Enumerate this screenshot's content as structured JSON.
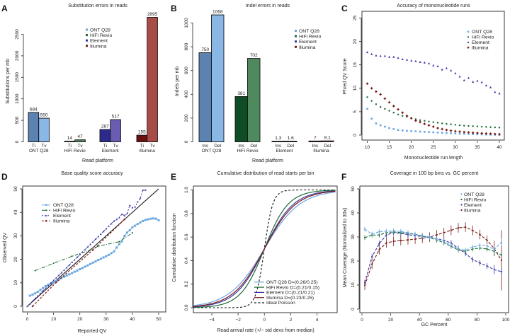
{
  "figure": {
    "panels": [
      "A",
      "B",
      "C",
      "D",
      "E",
      "F"
    ]
  },
  "colors": {
    "ont_dark": "#5b82b0",
    "ont_light": "#8ab8e6",
    "ont": "#6aa6e0",
    "hifi_dark": "#0f4d26",
    "hifi_light": "#4f8a5e",
    "hifi": "#1d6b35",
    "element_dark": "#2c2a8c",
    "element_light": "#6a5cb0",
    "element": "#3c36a6",
    "illumina_dark": "#6b1010",
    "illumina_light": "#a84c48",
    "illumina": "#7a1a14",
    "ideal": "#111111"
  },
  "chart_data": [
    {
      "panel": "A",
      "type": "bar",
      "title": "Substitution errors in reads",
      "xlabel": "Read platform",
      "ylabel": "Substitutions per mb",
      "ylim": [
        0,
        2900
      ],
      "yticks": [
        0,
        500,
        1000,
        1500,
        2000,
        2500
      ],
      "groups": [
        {
          "name": "ONT Q28",
          "bars": [
            {
              "label": "Ti",
              "value": 684
            },
            {
              "label": "Tv",
              "value": 550
            }
          ]
        },
        {
          "name": "HiFi Revio",
          "bars": [
            {
              "label": "Ti",
              "value": 14
            },
            {
              "label": "Tv",
              "value": 47
            }
          ]
        },
        {
          "name": "Element",
          "bars": [
            {
              "label": "Ti",
              "value": 287
            },
            {
              "label": "Tv",
              "value": 517
            }
          ]
        },
        {
          "name": "Illumina",
          "bars": [
            {
              "label": "Ti",
              "value": 155
            },
            {
              "label": "Tv",
              "value": 2895
            }
          ]
        }
      ],
      "legend": [
        "ONT Q28",
        "HiFi Revio",
        "Element",
        "Illumina"
      ],
      "legend_position": "top-center"
    },
    {
      "panel": "B",
      "type": "bar",
      "title": "Indel errors in reads",
      "xlabel": "Read platform",
      "ylabel": "Indels per mb",
      "ylim": [
        0,
        1080
      ],
      "yticks": [
        0,
        200,
        400,
        600,
        800,
        1000
      ],
      "groups": [
        {
          "name": "ONT Q28",
          "bars": [
            {
              "label": "Ins",
              "value": 750,
              "text": "750"
            },
            {
              "label": "Del",
              "value": 1068,
              "text": "1068"
            }
          ]
        },
        {
          "name": "HiFi Revio",
          "bars": [
            {
              "label": "Ins",
              "value": 381,
              "text": "381"
            },
            {
              "label": "Del",
              "value": 702,
              "text": "702"
            }
          ]
        },
        {
          "name": "Element",
          "bars": [
            {
              "label": "Ins",
              "value": 1.3,
              "text": "1.3"
            },
            {
              "label": "Del",
              "value": 1.6,
              "text": "1.6"
            }
          ]
        },
        {
          "name": "Illumina",
          "bars": [
            {
              "label": "Ins",
              "value": 7,
              "text": "7"
            },
            {
              "label": "Del",
              "value": 8.1,
              "text": "8.1"
            }
          ]
        }
      ],
      "legend": [
        "ONT Q28",
        "HiFi Revio",
        "Element",
        "Illumina"
      ],
      "legend_position": "top-right"
    },
    {
      "panel": "C",
      "type": "scatter",
      "title": "Accuracy of mononucleotide runs",
      "xlabel": "Mononucleotide run length",
      "ylabel": "Phred QV Score",
      "xlim": [
        10,
        40
      ],
      "ylim": [
        0,
        25
      ],
      "xticks": [
        10,
        15,
        20,
        25,
        30,
        35,
        40
      ],
      "yticks": [
        0,
        5,
        10,
        15,
        20,
        25
      ],
      "x": [
        10,
        11,
        12,
        13,
        14,
        15,
        16,
        17,
        18,
        19,
        20,
        21,
        22,
        23,
        24,
        25,
        26,
        27,
        28,
        29,
        30,
        31,
        32,
        33,
        34,
        35,
        36,
        37,
        38,
        39,
        40
      ],
      "series": [
        {
          "name": "ONT Q28",
          "marker": "square",
          "values": [
            5.6,
            3.5,
            2.5,
            2.1,
            1.8,
            1.5,
            1.3,
            1.1,
            1.0,
            0.9,
            0.85,
            0.8,
            0.75,
            0.7,
            0.65,
            0.6,
            0.55,
            0.5,
            0.45,
            0.4,
            0.35,
            0.3,
            0.28,
            0.25,
            0.2,
            0.18,
            0.15,
            0.12,
            0.1,
            0.08,
            0.05
          ]
        },
        {
          "name": "HiFi Revio",
          "marker": "circle",
          "values": [
            8.1,
            7.3,
            6.6,
            6.0,
            5.6,
            5.2,
            4.8,
            4.4,
            4.1,
            3.9,
            3.6,
            3.4,
            3.2,
            3.05,
            2.9,
            2.75,
            2.65,
            2.5,
            2.4,
            2.3,
            2.2,
            2.1,
            2.0,
            1.95,
            1.9,
            1.85,
            1.8,
            1.75,
            1.7,
            1.65,
            1.6
          ]
        },
        {
          "name": "Element",
          "marker": "triangle",
          "values": [
            17.7,
            17.3,
            17.0,
            16.9,
            16.9,
            16.7,
            16.7,
            16.5,
            16.2,
            16.1,
            15.9,
            15.8,
            15.6,
            15.5,
            15.3,
            14.9,
            14.7,
            14.0,
            14.3,
            13.8,
            13.2,
            12.5,
            11.7,
            12.2,
            11.4,
            11.6,
            11.3,
            10.6,
            10.2,
            9.2,
            8.9
          ]
        },
        {
          "name": "Illumina",
          "marker": "plus-circle",
          "values": [
            11.0,
            10.0,
            9.3,
            8.7,
            7.8,
            7.0,
            6.2,
            5.5,
            4.8,
            4.1,
            3.6,
            3.1,
            2.8,
            2.4,
            2.1,
            1.8,
            1.5,
            1.3,
            1.1,
            0.95,
            0.85,
            0.75,
            0.65,
            0.6,
            0.5,
            0.45,
            0.4,
            0.35,
            0.3,
            0.25,
            0.2
          ]
        }
      ],
      "legend": [
        "ONT Q28",
        "HiFi Revio",
        "Element",
        "Illumina"
      ],
      "legend_position": "top-right"
    },
    {
      "panel": "D",
      "type": "line",
      "title": "Base quality score accuracy",
      "xlabel": "Reported QV",
      "ylabel": "Observed QV",
      "xlim": [
        0,
        50
      ],
      "ylim": [
        0,
        50
      ],
      "xticks": [
        0,
        10,
        20,
        30,
        40,
        50
      ],
      "yticks": [
        0,
        10,
        20,
        30,
        40,
        50
      ],
      "reference_line": {
        "name": "identity",
        "x": [
          0,
          50
        ],
        "y": [
          0,
          50
        ]
      },
      "series": [
        {
          "name": "ONT Q28",
          "marker": "square",
          "x": [
            1,
            2,
            3,
            4,
            5,
            6,
            7,
            8,
            9,
            10,
            11,
            12,
            13,
            14,
            15,
            16,
            17,
            18,
            19,
            20,
            21,
            22,
            23,
            24,
            25,
            26,
            27,
            28,
            29,
            30,
            31,
            32,
            33,
            34,
            35,
            36,
            37,
            38,
            39,
            40,
            41,
            42,
            43,
            44,
            45,
            46,
            47,
            48,
            49,
            50
          ],
          "y": [
            4.5,
            5.0,
            5.5,
            6.2,
            7.0,
            7.8,
            8.6,
            9.2,
            9.8,
            10.2,
            10.8,
            11.4,
            12.0,
            12.6,
            13.1,
            13.6,
            14.1,
            14.7,
            15.2,
            15.8,
            16.3,
            16.9,
            17.4,
            18.0,
            18.6,
            19.1,
            19.7,
            20.2,
            20.8,
            21.3,
            21.9,
            22.6,
            23.3,
            25.0,
            26.4,
            27.6,
            30.0,
            31.4,
            32.4,
            33.6,
            34.3,
            35.1,
            35.7,
            36.3,
            36.8,
            37.0,
            37.3,
            37.4,
            37.3,
            36.6
          ]
        },
        {
          "name": "HiFi Revio",
          "marker": "circle",
          "x": [
            3,
            10,
            17,
            24,
            27,
            35,
            40
          ],
          "y": [
            15.2,
            18.3,
            21.3,
            24.0,
            25.6,
            27.5,
            31.3
          ]
        },
        {
          "name": "Element",
          "marker": "triangle",
          "x": [
            0,
            1,
            2,
            3,
            4,
            5,
            6,
            7,
            8,
            9,
            10,
            11,
            12,
            13,
            14,
            15,
            16,
            17,
            18,
            19,
            20,
            21,
            22,
            23,
            24,
            25,
            26,
            27,
            28,
            29,
            30,
            31,
            32,
            33,
            34,
            35,
            36,
            37,
            38,
            39,
            40,
            41,
            42,
            43,
            44,
            45
          ],
          "y": [
            0,
            1.0,
            2.2,
            3.3,
            4.4,
            5.5,
            6.6,
            7.7,
            8.8,
            9.9,
            11.0,
            12.1,
            13.2,
            14.3,
            15.4,
            16.5,
            17.6,
            18.7,
            19.8,
            20.9,
            22.0,
            23.1,
            24.2,
            25.3,
            26.4,
            27.5,
            28.6,
            29.7,
            30.8,
            31.9,
            33.0,
            34.1,
            35.2,
            36.3,
            37.0,
            37.8,
            39.2,
            38.6,
            39.5,
            43.0,
            42.0,
            42.3,
            44.5,
            46.0,
            49.5,
            49.5
          ]
        },
        {
          "name": "Illumina",
          "marker": "square",
          "x": [
            2,
            11,
            25,
            37
          ],
          "y": [
            0,
            10.2,
            24.0,
            37.0
          ]
        }
      ],
      "legend": [
        "ONT Q28",
        "HiFi Revio",
        "Element",
        "Illumina"
      ],
      "legend_position": "top-left"
    },
    {
      "panel": "E",
      "type": "line",
      "title": "Cumulative distribution of read starts per bin",
      "xlabel": "Read arrival rate (+/− std devs from median)",
      "ylabel": "Cumulative distribution function",
      "xlim": [
        -5.4,
        5.4
      ],
      "ylim": [
        0,
        1
      ],
      "xticks": [
        -4,
        -2,
        0,
        2,
        4
      ],
      "xtick_labels": [
        "−4",
        "−2",
        "0",
        "2",
        "4"
      ],
      "yticks": [
        0.0,
        0.2,
        0.4,
        0.6,
        0.8,
        1.0
      ],
      "ytick_labels": [
        "0.0",
        "0.2",
        "0.4",
        "0.6",
        "0.8",
        "1.0"
      ],
      "series": [
        {
          "name": "ONT Q28 D=(0.26/0.25)",
          "style": "solid",
          "scale": 2.3
        },
        {
          "name": "HiFi Revio D=(0.21/0.15)",
          "style": "solid",
          "scale": 1.55
        },
        {
          "name": "Element D=(0.21/0.21)",
          "style": "solid",
          "scale": 1.9
        },
        {
          "name": "Illumina D=(0.23/0.25)",
          "style": "solid",
          "scale": 2.05
        },
        {
          "name": "Ideal Poisson",
          "style": "dashed",
          "scale": 0.55
        }
      ],
      "legend": [
        "ONT Q28 D=(0.26/0.25)",
        "HiFi Revio D=(0.21/0.15)",
        "Element D=(0.21/0.21)",
        "Illumina D=(0.23/0.25)",
        "Ideal Poisson"
      ],
      "legend_position": "bottom-right"
    },
    {
      "panel": "F",
      "type": "line",
      "title": "Coverage in 100 bp bins vs. GC percent",
      "xlabel": "GC Percent",
      "ylabel": "Mean Coverage (Normalized to 30x)",
      "xlim": [
        0,
        100
      ],
      "ylim": [
        0,
        50
      ],
      "xticks": [
        0,
        20,
        40,
        60,
        80,
        100
      ],
      "yticks": [
        0,
        10,
        20,
        30,
        40,
        50
      ],
      "x": [
        2,
        7,
        12,
        17,
        22,
        27,
        32,
        37,
        42,
        47,
        52,
        57,
        62,
        67,
        72,
        77,
        82,
        87,
        92,
        97
      ],
      "series": [
        {
          "name": "ONT Q28",
          "values": [
            33.2,
            31.2,
            32.2,
            32.4,
            32.6,
            32.3,
            31.8,
            31.1,
            30.4,
            29.9,
            29.2,
            28.1,
            26.5,
            25.0,
            24.5,
            25.8,
            26.6,
            26.3,
            24.8,
            27.8
          ]
        },
        {
          "name": "HiFi Revio",
          "values": [
            29.7,
            30.8,
            30.8,
            31.8,
            32.1,
            31.8,
            31.5,
            31.1,
            30.4,
            29.7,
            28.7,
            27.6,
            26.1,
            24.6,
            24.0,
            25.0,
            25.4,
            25.0,
            24.0,
            22.5
          ]
        },
        {
          "name": "Element",
          "values": [
            11.0,
            21.8,
            27.2,
            30.8,
            31.8,
            31.5,
            31.0,
            30.5,
            30.2,
            30.0,
            29.3,
            28.6,
            27.5,
            25.2,
            23.2,
            20.6,
            19.2,
            17.9,
            16.4,
            15.6
          ]
        },
        {
          "name": "Illumina",
          "values": [
            9.9,
            18.7,
            24.7,
            27.5,
            28.2,
            28.5,
            28.8,
            29.1,
            29.5,
            29.9,
            30.9,
            31.8,
            32.8,
            33.8,
            34.1,
            32.7,
            31.0,
            28.6,
            25.2,
            20.3
          ]
        }
      ],
      "legend": [
        "ONT Q28",
        "HiFi Revio",
        "Element",
        "Illumina"
      ],
      "legend_position": "top-right"
    }
  ]
}
